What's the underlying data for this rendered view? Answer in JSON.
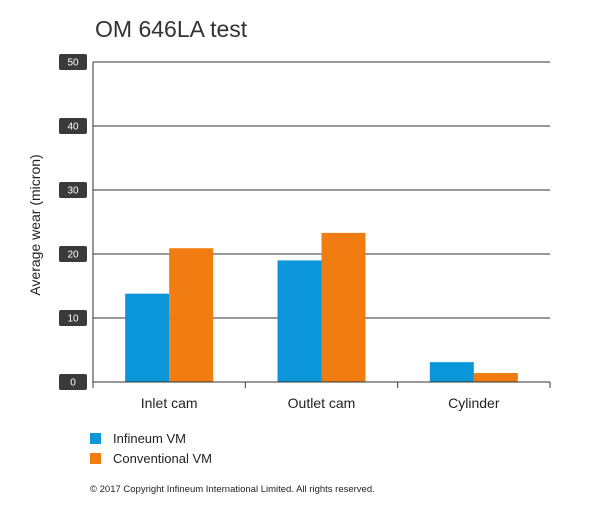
{
  "chart_data": {
    "type": "bar",
    "title": "OM 646LA test",
    "xlabel": "",
    "ylabel": "Average wear (micron)",
    "ylim": [
      0,
      50
    ],
    "yticks": [
      0,
      10,
      20,
      30,
      40,
      50
    ],
    "grid": true,
    "legend_position": "bottom-left",
    "categories": [
      "Inlet cam",
      "Outlet cam",
      "Cylinder"
    ],
    "series": [
      {
        "name": "Infineum VM",
        "color": "#0a96d8",
        "values": [
          13.8,
          19.0,
          3.1
        ]
      },
      {
        "name": "Conventional VM",
        "color": "#f07c12",
        "values": [
          20.9,
          23.3,
          1.4
        ]
      }
    ]
  },
  "footer": {
    "copyright": "© 2017 Copyright Infineum International Limited. All rights reserved."
  }
}
